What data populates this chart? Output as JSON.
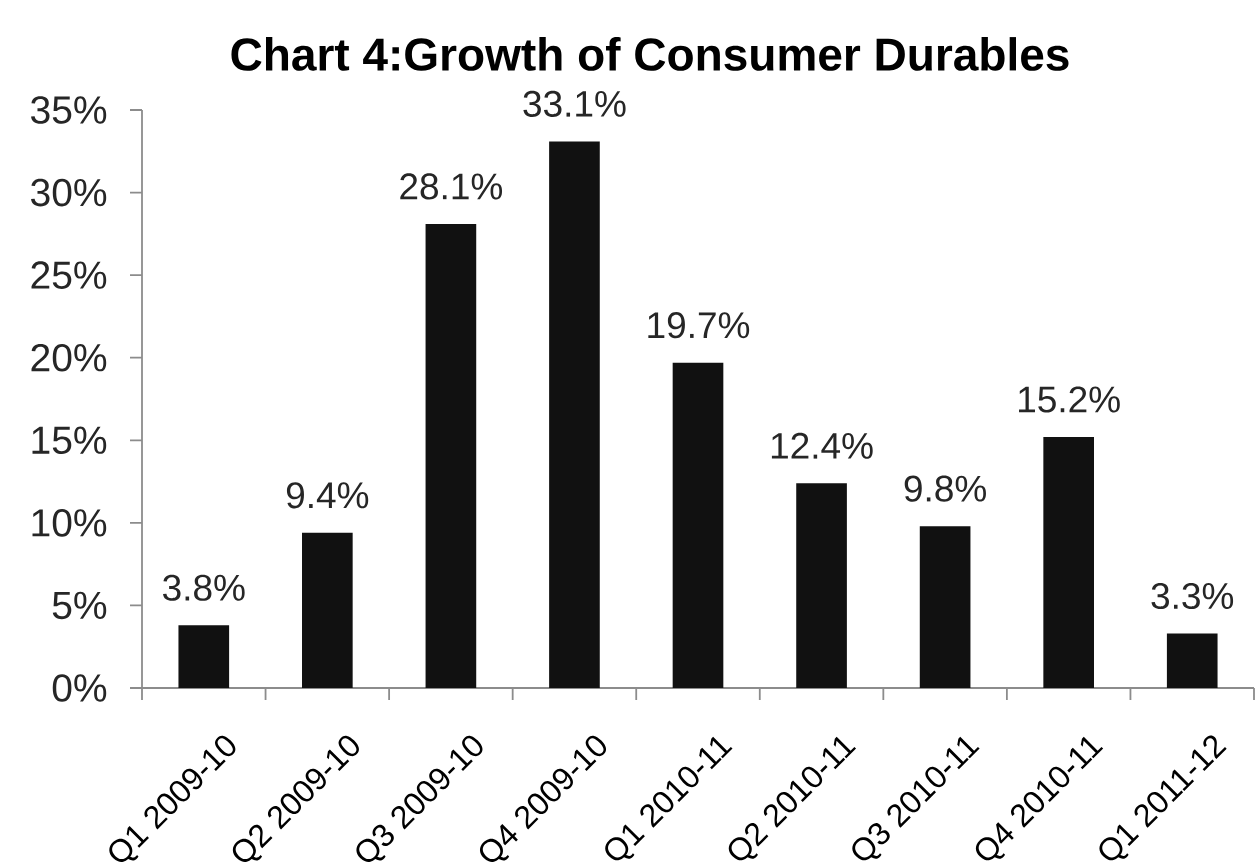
{
  "chart_data": {
    "type": "bar",
    "title": "Chart 4:Growth of Consumer Durables",
    "categories": [
      "Q1 2009-10",
      "Q2 2009-10",
      "Q3 2009-10",
      "Q4 2009-10",
      "Q1 2010-11",
      "Q2 2010-11",
      "Q3 2010-11",
      "Q4 2010-11",
      "Q1 2011-12"
    ],
    "values": [
      3.8,
      9.4,
      28.1,
      33.1,
      19.7,
      12.4,
      9.8,
      15.2,
      3.3
    ],
    "value_labels": [
      "3.8%",
      "9.4%",
      "28.1%",
      "33.1%",
      "19.7%",
      "12.4%",
      "9.8%",
      "15.2%",
      "3.3%"
    ],
    "color": "#111111",
    "ylim": [
      0,
      35
    ],
    "yticks": [
      {
        "value": 0,
        "label": "0%"
      },
      {
        "value": 5,
        "label": "5%"
      },
      {
        "value": 10,
        "label": "10%"
      },
      {
        "value": 15,
        "label": "15%"
      },
      {
        "value": 20,
        "label": "20%"
      },
      {
        "value": 25,
        "label": "25%"
      },
      {
        "value": 30,
        "label": "30%"
      },
      {
        "value": 35,
        "label": "35%"
      }
    ]
  }
}
